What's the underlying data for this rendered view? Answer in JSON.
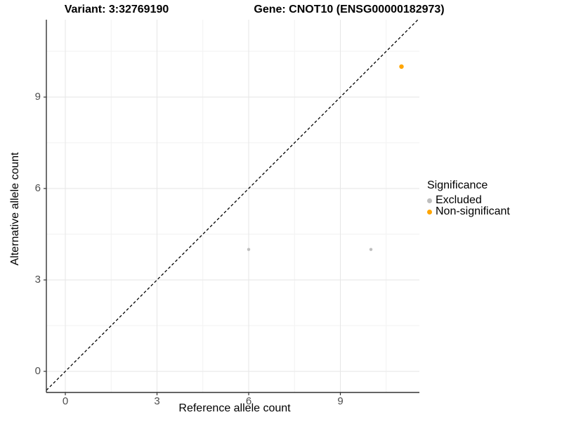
{
  "chart_data": {
    "type": "scatter",
    "title_left": "Variant: 3:32769190",
    "title_right": "Gene: CNOT10 (ENSG00000182973)",
    "xlabel": "Reference allele count",
    "ylabel": "Alternative allele count",
    "x_ticks": [
      0,
      3,
      6,
      9
    ],
    "y_ticks": [
      0,
      3,
      6,
      9
    ],
    "x_minor_ticks": [
      1.5,
      4.5,
      7.5,
      10.5
    ],
    "y_minor_ticks": [
      1.5,
      4.5,
      7.5,
      10.5
    ],
    "xlim": [
      -0.62,
      11.6
    ],
    "ylim": [
      -0.69,
      11.55
    ],
    "grid": {
      "major_color": "#e6e6e6",
      "minor_color": "#f2f2f2",
      "visible": true
    },
    "axis_color": "#333333",
    "tick_label_color": "#4d4d4d",
    "identity_line": {
      "type": "dashed",
      "color": "#000000",
      "equation": "y = x"
    },
    "legend": {
      "title": "Significance",
      "position": "right",
      "items": [
        {
          "label": "Excluded",
          "color": "#bebebe"
        },
        {
          "label": "Non-significant",
          "color": "#ffa500"
        }
      ]
    },
    "series": [
      {
        "name": "Excluded",
        "color": "#bebebe",
        "radius": 2.2,
        "points": [
          {
            "x": 6,
            "y": 4
          },
          {
            "x": 10,
            "y": 4
          }
        ]
      },
      {
        "name": "Non-significant",
        "color": "#ffa500",
        "radius": 3.2,
        "points": [
          {
            "x": 11,
            "y": 10
          }
        ]
      }
    ]
  }
}
